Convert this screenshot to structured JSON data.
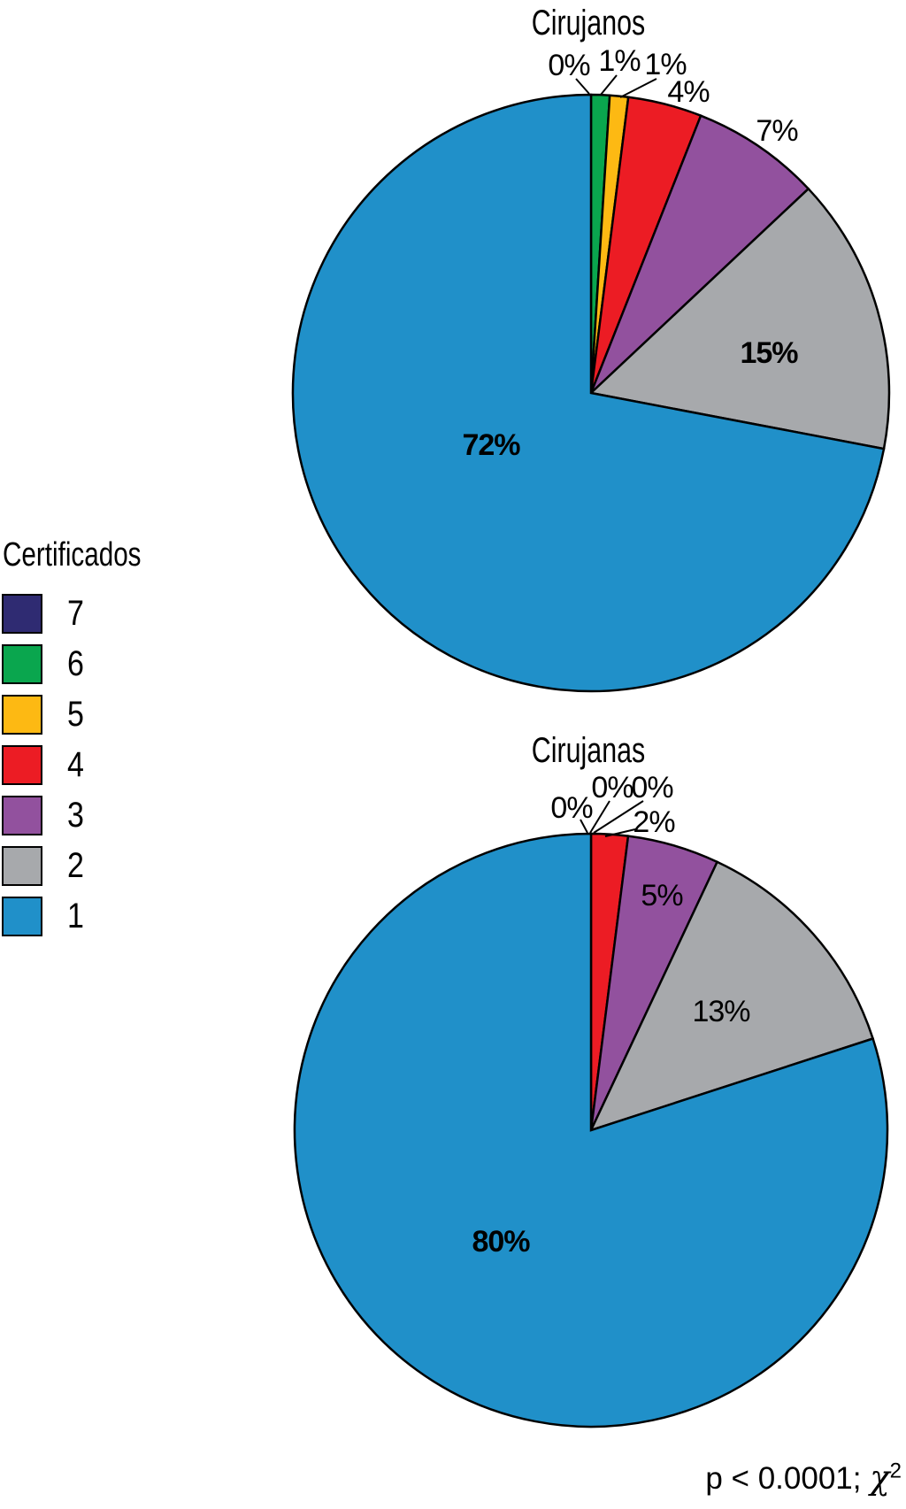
{
  "figure": {
    "background": "#ffffff",
    "outline_color": "#000000"
  },
  "legend": {
    "title": "Certificados",
    "items": [
      {
        "label": "7",
        "color": "#2F2B72"
      },
      {
        "label": "6",
        "color": "#0AA64E"
      },
      {
        "label": "5",
        "color": "#FDB913"
      },
      {
        "label": "4",
        "color": "#EC1C24"
      },
      {
        "label": "3",
        "color": "#92519E"
      },
      {
        "label": "2",
        "color": "#A7A9AC"
      },
      {
        "label": "1",
        "color": "#2090C9"
      }
    ]
  },
  "footnote": {
    "prefix": "p < 0.0001; ",
    "chi": "χ",
    "sup": "2"
  },
  "chart_data": [
    {
      "type": "pie",
      "title": "Cirujanos",
      "legend_title": "Certificados",
      "legend_position": "left",
      "unit": "%",
      "start_angle": "12-oclock",
      "direction": "clockwise",
      "categories": [
        "7",
        "6",
        "5",
        "4",
        "3",
        "2",
        "1"
      ],
      "values": [
        0,
        1,
        1,
        4,
        7,
        15,
        72
      ],
      "labels": [
        "0%",
        "1%",
        "1%",
        "4%",
        "7%",
        "15%",
        "72%"
      ],
      "colors": [
        "#2F2B72",
        "#0AA64E",
        "#FDB913",
        "#EC1C24",
        "#92519E",
        "#A7A9AC",
        "#2090C9"
      ]
    },
    {
      "type": "pie",
      "title": "Cirujanas",
      "legend_title": "Certificados",
      "legend_position": "left",
      "unit": "%",
      "start_angle": "12-oclock",
      "direction": "clockwise",
      "categories": [
        "7",
        "6",
        "5",
        "4",
        "3",
        "2",
        "1"
      ],
      "values": [
        0,
        0,
        0,
        2,
        5,
        13,
        80
      ],
      "labels": [
        "0%",
        "0%",
        "0%",
        "2%",
        "5%",
        "13%",
        "80%"
      ],
      "colors": [
        "#2F2B72",
        "#0AA64E",
        "#FDB913",
        "#EC1C24",
        "#92519E",
        "#A7A9AC",
        "#2090C9"
      ]
    }
  ]
}
